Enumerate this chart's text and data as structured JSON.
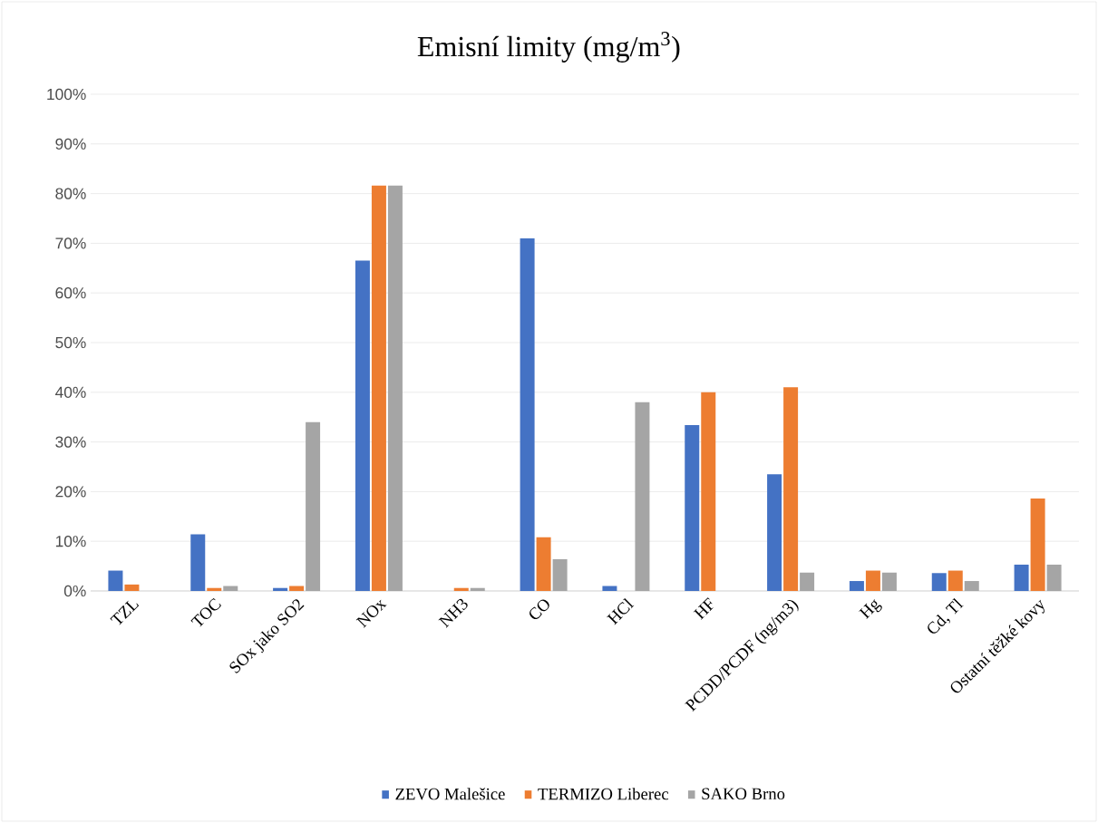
{
  "chart_data": {
    "type": "bar",
    "title": "Emisní limity (mg/m$^{3}$)",
    "categories": [
      "TZL",
      "TOC",
      "SOx jako SO2",
      "NOx",
      "NH3",
      "CO",
      "HCl",
      "HF",
      "PCDD/PCDF (ng/m3)",
      "Hg",
      "Cd, Tl",
      "Ostatní těžké kovy"
    ],
    "series": [
      {
        "name": "ZEVO Malešice",
        "color": "#4472c4",
        "values": [
          4.1,
          11.4,
          0.6,
          66.5,
          0,
          71,
          1.0,
          33.4,
          23.5,
          2.0,
          3.6,
          5.3
        ]
      },
      {
        "name": "TERMIZO Liberec",
        "color": "#ed7d31",
        "values": [
          1.3,
          0.6,
          1.0,
          81.6,
          0.6,
          10.8,
          0,
          40,
          41,
          4.1,
          4.1,
          18.6
        ]
      },
      {
        "name": "SAKO Brno",
        "color": "#a5a5a5",
        "values": [
          0,
          1.0,
          34,
          81.6,
          0.6,
          6.4,
          38,
          0,
          3.7,
          3.7,
          2.0,
          5.3
        ]
      }
    ],
    "ylim": [
      0,
      100
    ],
    "yticks": [
      {
        "value": 0,
        "label": "0%"
      },
      {
        "value": 10,
        "label": "10%"
      },
      {
        "value": 20,
        "label": "20%"
      },
      {
        "value": 30,
        "label": "30%"
      },
      {
        "value": 40,
        "label": "40%"
      },
      {
        "value": 50,
        "label": "50%"
      },
      {
        "value": 60,
        "label": "60%"
      },
      {
        "value": 70,
        "label": "70%"
      },
      {
        "value": 80,
        "label": "80%"
      },
      {
        "value": 90,
        "label": "90%"
      },
      {
        "value": 100,
        "label": "100%"
      }
    ],
    "grid": "y",
    "legend": "bottom"
  }
}
